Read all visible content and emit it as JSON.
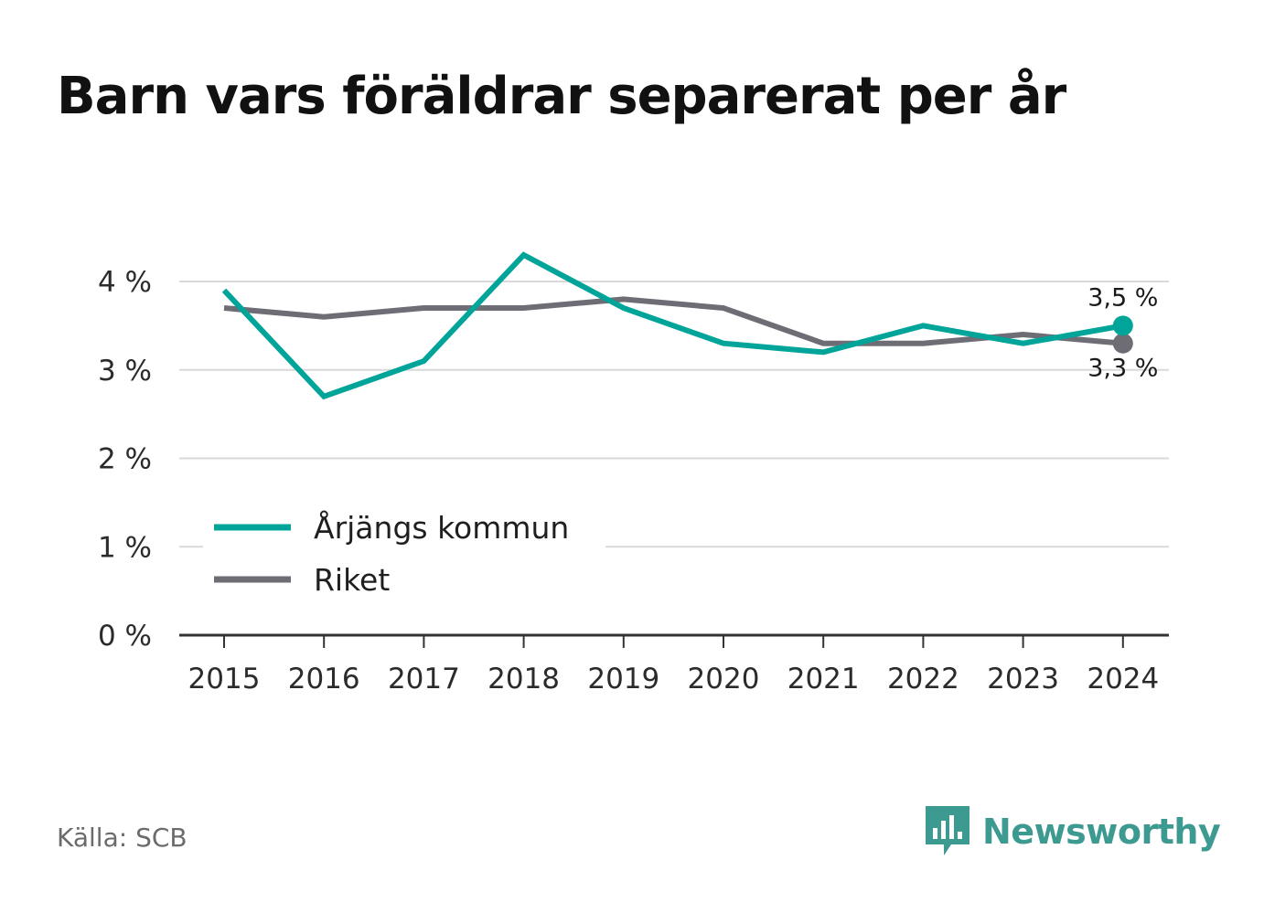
{
  "chart_data": {
    "type": "line",
    "title": "Barn vars föräldrar separerat per år",
    "categories": [
      "2015",
      "2016",
      "2017",
      "2018",
      "2019",
      "2020",
      "2021",
      "2022",
      "2023",
      "2024"
    ],
    "series": [
      {
        "name": "Årjängs kommun",
        "color": "#00a499",
        "values": [
          3.9,
          2.7,
          3.1,
          4.3,
          3.7,
          3.3,
          3.2,
          3.5,
          3.3,
          3.5
        ],
        "end_label": "3,5 %"
      },
      {
        "name": "Riket",
        "color": "#6e6d75",
        "values": [
          3.7,
          3.6,
          3.7,
          3.7,
          3.8,
          3.7,
          3.3,
          3.3,
          3.4,
          3.3
        ],
        "end_label": "3,3 %"
      }
    ],
    "y_ticks": [
      0,
      1,
      2,
      3,
      4
    ],
    "y_tick_labels": [
      "0 %",
      "1 %",
      "2 %",
      "3 %",
      "4 %"
    ],
    "ylim": [
      0,
      4.3
    ],
    "grid": true,
    "legend_position": "bottom-left"
  },
  "source": "Källa: SCB",
  "brand": {
    "name": "Newsworthy",
    "color": "#3d9a91"
  }
}
